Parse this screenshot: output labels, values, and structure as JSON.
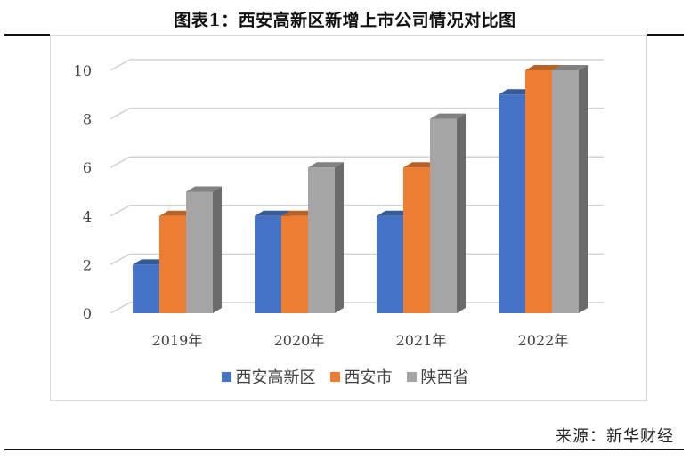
{
  "title": "图表1：西安高新区新增上市公司情况对比图",
  "source": "来源：新华财经",
  "chart_data": {
    "type": "bar",
    "style": "3d-clustered-column",
    "title": "图表1：西安高新区新增上市公司情况对比图",
    "xlabel": "",
    "ylabel": "",
    "categories": [
      "2019年",
      "2020年",
      "2021年",
      "2022年"
    ],
    "series": [
      {
        "name": "西安高新区",
        "color": "#4472C4",
        "values": [
          2,
          4,
          4,
          9
        ]
      },
      {
        "name": "西安市",
        "color": "#ED7D31",
        "values": [
          4,
          4,
          6,
          10
        ]
      },
      {
        "name": "陕西省",
        "color": "#A5A5A5",
        "values": [
          5,
          6,
          8,
          10
        ]
      }
    ],
    "yticks": [
      0,
      2,
      4,
      6,
      8,
      10
    ],
    "ylim": [
      0,
      10
    ],
    "grid": true,
    "legend_position": "bottom"
  }
}
